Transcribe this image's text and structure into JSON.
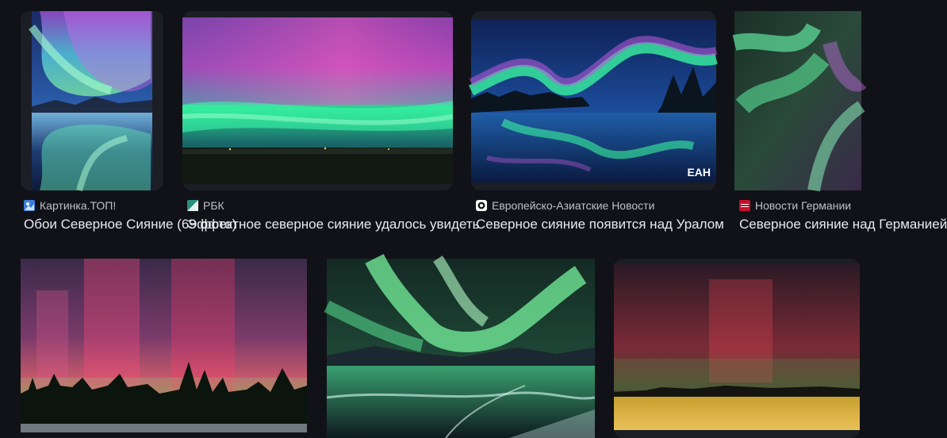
{
  "results": [
    {
      "source": "Картинка.ТОП!",
      "favicon": "kartinka-top-favicon",
      "favicon_color": "#3b7ddd",
      "title": "Обои Северное Сияние (69 фото)"
    },
    {
      "source": "РБК",
      "favicon": "rbc-favicon",
      "favicon_color": "#2a8f7f",
      "title": "Эффектное северное сияние удалось увидеть"
    },
    {
      "source": "Европейско-Азиатские Новости",
      "favicon": "ean-favicon",
      "favicon_color": "#ffffff",
      "title": "Северное сияние появится над Уралом"
    },
    {
      "source": "Новости Германии",
      "favicon": "news-germany-favicon",
      "favicon_color": "#c8102e",
      "title": "Северное сияние над Германией"
    },
    {
      "title": ""
    },
    {
      "title": ""
    },
    {
      "title": ""
    }
  ],
  "watermark": "ЕАН",
  "colors": {
    "background": "#111218",
    "source_text": "#bdc1c6",
    "title_text": "#e8eaed"
  }
}
